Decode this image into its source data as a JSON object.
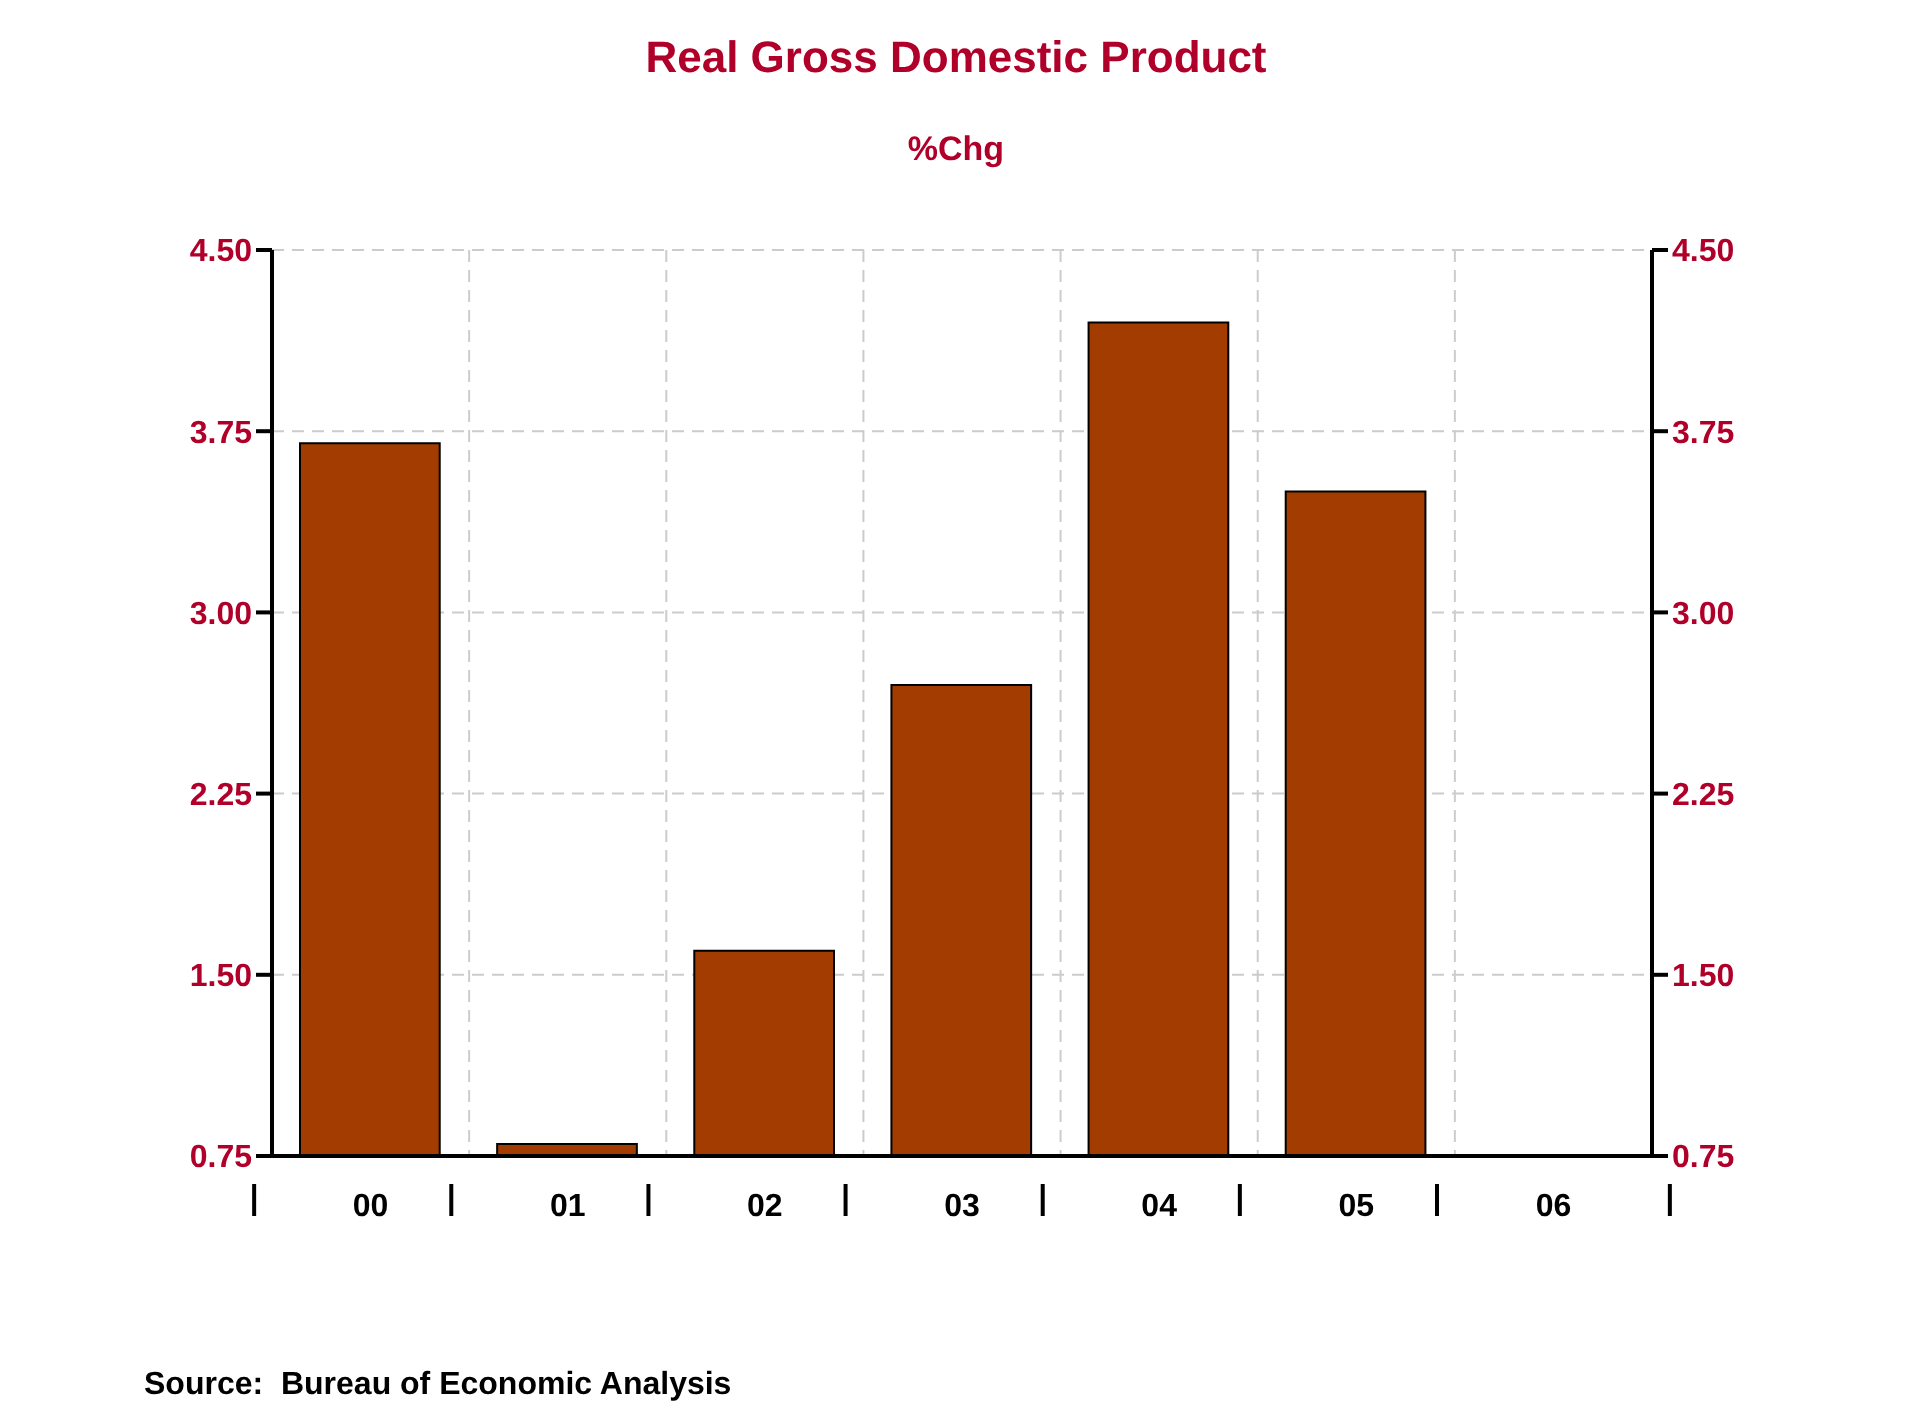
{
  "chart_data": {
    "type": "bar",
    "title": "Real Gross Domestic Product",
    "subtitle": "%Chg",
    "categories": [
      "00",
      "01",
      "02",
      "03",
      "04",
      "05",
      "06"
    ],
    "values": [
      3.7,
      0.8,
      1.6,
      2.7,
      4.2,
      3.5,
      null
    ],
    "color": "#a33c00",
    "ylim": [
      0.75,
      4.5
    ],
    "yticks": [
      {
        "value": 0.75,
        "label": "0.75"
      },
      {
        "value": 1.5,
        "label": "1.50"
      },
      {
        "value": 2.25,
        "label": "2.25"
      },
      {
        "value": 3,
        "label": "3.00"
      },
      {
        "value": 3.75,
        "label": "3.75"
      },
      {
        "value": 4.5,
        "label": "4.50"
      }
    ],
    "y2lim": [
      0.75,
      4.5
    ],
    "y2ticks": [
      {
        "value": 0.75,
        "label": "0.75"
      },
      {
        "value": 1.5,
        "label": "1.50"
      },
      {
        "value": 2.25,
        "label": "2.25"
      },
      {
        "value": 3,
        "label": "3.00"
      },
      {
        "value": 3.75,
        "label": "3.75"
      },
      {
        "value": 4.5,
        "label": "4.50"
      }
    ],
    "grid": true,
    "annotations": [
      "Source:  Bureau of Economic Analysis"
    ]
  }
}
